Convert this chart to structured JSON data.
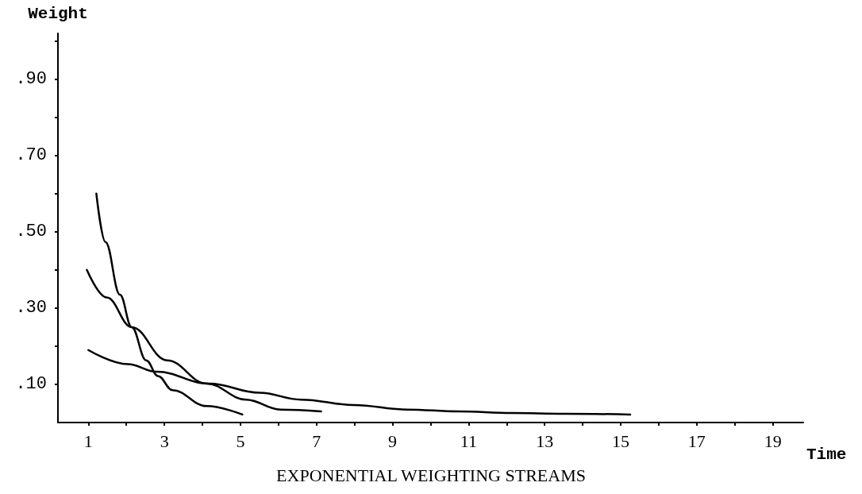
{
  "chart_data": {
    "type": "line",
    "title": "EXPONENTIAL WEIGHTING STREAMS",
    "xlabel": "Time",
    "ylabel": "Weight",
    "series": [
      {
        "color": "#000000",
        "x": [
          1.21,
          1.45,
          1.83,
          2.14,
          2.52,
          2.83,
          3.21,
          4.11,
          5.05
        ],
        "values": [
          0.6,
          0.473,
          0.335,
          0.25,
          0.163,
          0.122,
          0.085,
          0.043,
          0.021
        ]
      },
      {
        "color": "#000000",
        "x": [
          0.96,
          1.48,
          2.14,
          3.07,
          4.11,
          5.15,
          6.05,
          7.12
        ],
        "values": [
          0.4,
          0.328,
          0.25,
          0.163,
          0.102,
          0.06,
          0.034,
          0.029
        ]
      },
      {
        "color": "#000000",
        "x": [
          1.0,
          2.04,
          2.8,
          4.18,
          5.5,
          6.6,
          7.98,
          9.37,
          10.75,
          12.13,
          13.52,
          15.25
        ],
        "values": [
          0.19,
          0.153,
          0.133,
          0.102,
          0.078,
          0.06,
          0.046,
          0.034,
          0.029,
          0.025,
          0.023,
          0.021
        ]
      }
    ],
    "xlim": [
      0.2,
      19.8
    ],
    "xticks": [
      1,
      {
        "value": 2,
        "label": null
      },
      3,
      {
        "value": 4,
        "label": null
      },
      5,
      {
        "value": 6,
        "label": null
      },
      7,
      {
        "value": 8,
        "label": null
      },
      9,
      {
        "value": 10,
        "label": null
      },
      11,
      {
        "value": 12,
        "label": null
      },
      13,
      {
        "value": 14,
        "label": null
      },
      15,
      {
        "value": 16,
        "label": null
      },
      17,
      {
        "value": 18,
        "label": null
      },
      19
    ],
    "ylim": [
      0,
      1.02
    ],
    "yticks": [
      {
        "value": 0.1,
        "label": ".10"
      },
      {
        "value": 0.2,
        "label": null
      },
      {
        "value": 0.3,
        "label": ".30"
      },
      {
        "value": 0.4,
        "label": null
      },
      {
        "value": 0.5,
        "label": ".50"
      },
      {
        "value": 0.6,
        "label": null
      },
      {
        "value": 0.7,
        "label": ".70"
      },
      {
        "value": 0.8,
        "label": null
      },
      {
        "value": 0.9,
        "label": ".90"
      },
      {
        "value": 1.0,
        "label": null
      }
    ],
    "grid": false,
    "marker": "none",
    "line_style": "solid"
  }
}
